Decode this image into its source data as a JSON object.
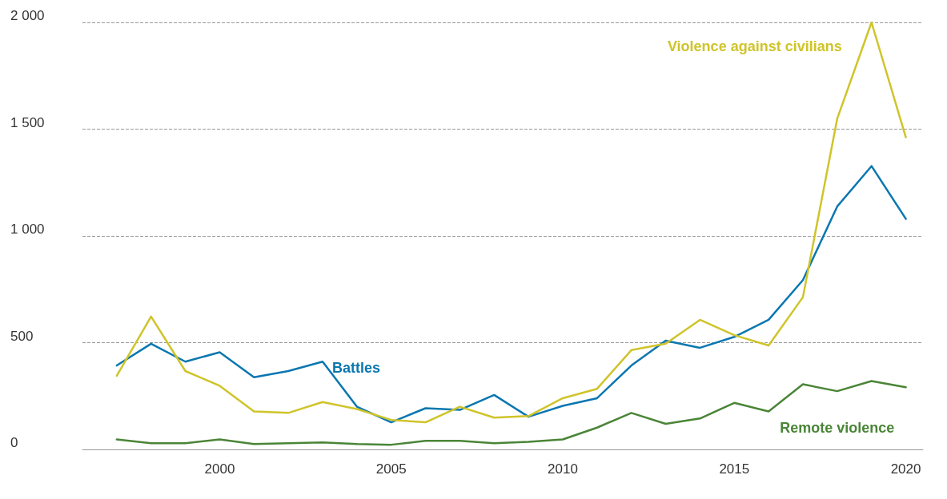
{
  "chart_data": {
    "type": "line",
    "x": [
      1997,
      1998,
      1999,
      2000,
      2001,
      2002,
      2003,
      2004,
      2005,
      2006,
      2007,
      2008,
      2009,
      2010,
      2011,
      2012,
      2013,
      2014,
      2015,
      2016,
      2017,
      2018,
      2019,
      2020
    ],
    "series": [
      {
        "name": "Battles",
        "color": "#0a77b0",
        "values": [
          393,
          495,
          411,
          455,
          338,
          367,
          411,
          200,
          127,
          193,
          185,
          255,
          153,
          204,
          240,
          393,
          509,
          476,
          527,
          607,
          793,
          1138,
          1327,
          1080
        ]
      },
      {
        "name": "Violence against civilians",
        "color": "#cfc42a",
        "values": [
          345,
          622,
          367,
          298,
          178,
          171,
          222,
          189,
          138,
          127,
          200,
          149,
          156,
          240,
          284,
          465,
          495,
          607,
          535,
          487,
          713,
          1549,
          2000,
          1462
        ]
      },
      {
        "name": "Remote violence",
        "color": "#4a8537",
        "values": [
          47,
          29,
          29,
          47,
          25,
          29,
          33,
          25,
          22,
          40,
          40,
          29,
          36,
          47,
          102,
          171,
          120,
          145,
          218,
          178,
          305,
          273,
          320,
          291
        ]
      }
    ],
    "xlim": [
      1996,
      2020.5
    ],
    "xticks": [
      2000,
      2005,
      2010,
      2015,
      2020
    ],
    "ylim": [
      0,
      2000
    ],
    "yticks": [
      0,
      {
        "value": 500,
        "label": "500"
      },
      {
        "value": 1000,
        "label": "1 000"
      },
      {
        "value": 1500,
        "label": "1 500"
      },
      {
        "value": 2000,
        "label": "2 000"
      }
    ],
    "grid": "y",
    "legend": false,
    "marker": "none",
    "line_style": "solid"
  }
}
